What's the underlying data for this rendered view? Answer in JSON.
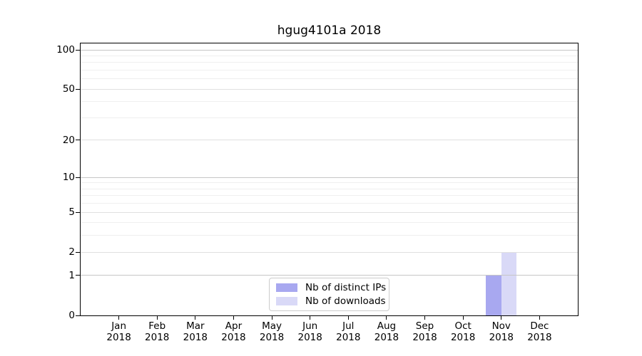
{
  "chart_data": {
    "type": "bar",
    "title": "hgug4101a 2018",
    "x_categories": [
      "Jan",
      "Feb",
      "Mar",
      "Apr",
      "May",
      "Jun",
      "Jul",
      "Aug",
      "Sep",
      "Oct",
      "Nov",
      "Dec"
    ],
    "x_year": "2018",
    "series": [
      {
        "name": "Nb of distinct IPs",
        "color": "#a8a8f0",
        "values": [
          0,
          0,
          0,
          0,
          0,
          0,
          0,
          0,
          0,
          0,
          1,
          0
        ]
      },
      {
        "name": "Nb of downloads",
        "color": "#d9d9f7",
        "values": [
          0,
          0,
          0,
          0,
          0,
          0,
          0,
          0,
          0,
          0,
          2,
          0
        ]
      }
    ],
    "y_axis": {
      "scale": "log10(value+1)",
      "major_ticks": [
        0,
        1,
        2,
        5,
        10,
        20,
        50,
        100
      ],
      "minor_gridlines": [
        3,
        4,
        6,
        7,
        8,
        9,
        30,
        40,
        60,
        70,
        80,
        90
      ],
      "ylim": [
        0,
        112
      ]
    },
    "legend": {
      "position": "bottom-center"
    },
    "grid": "horizontal",
    "colors": {
      "axis": "#000000",
      "background": "#ffffff",
      "grid_power10": "#c6c6c6",
      "grid_major": "#e0e0e0",
      "grid_minor": "#efefef",
      "legend_border": "#cccccc"
    }
  }
}
